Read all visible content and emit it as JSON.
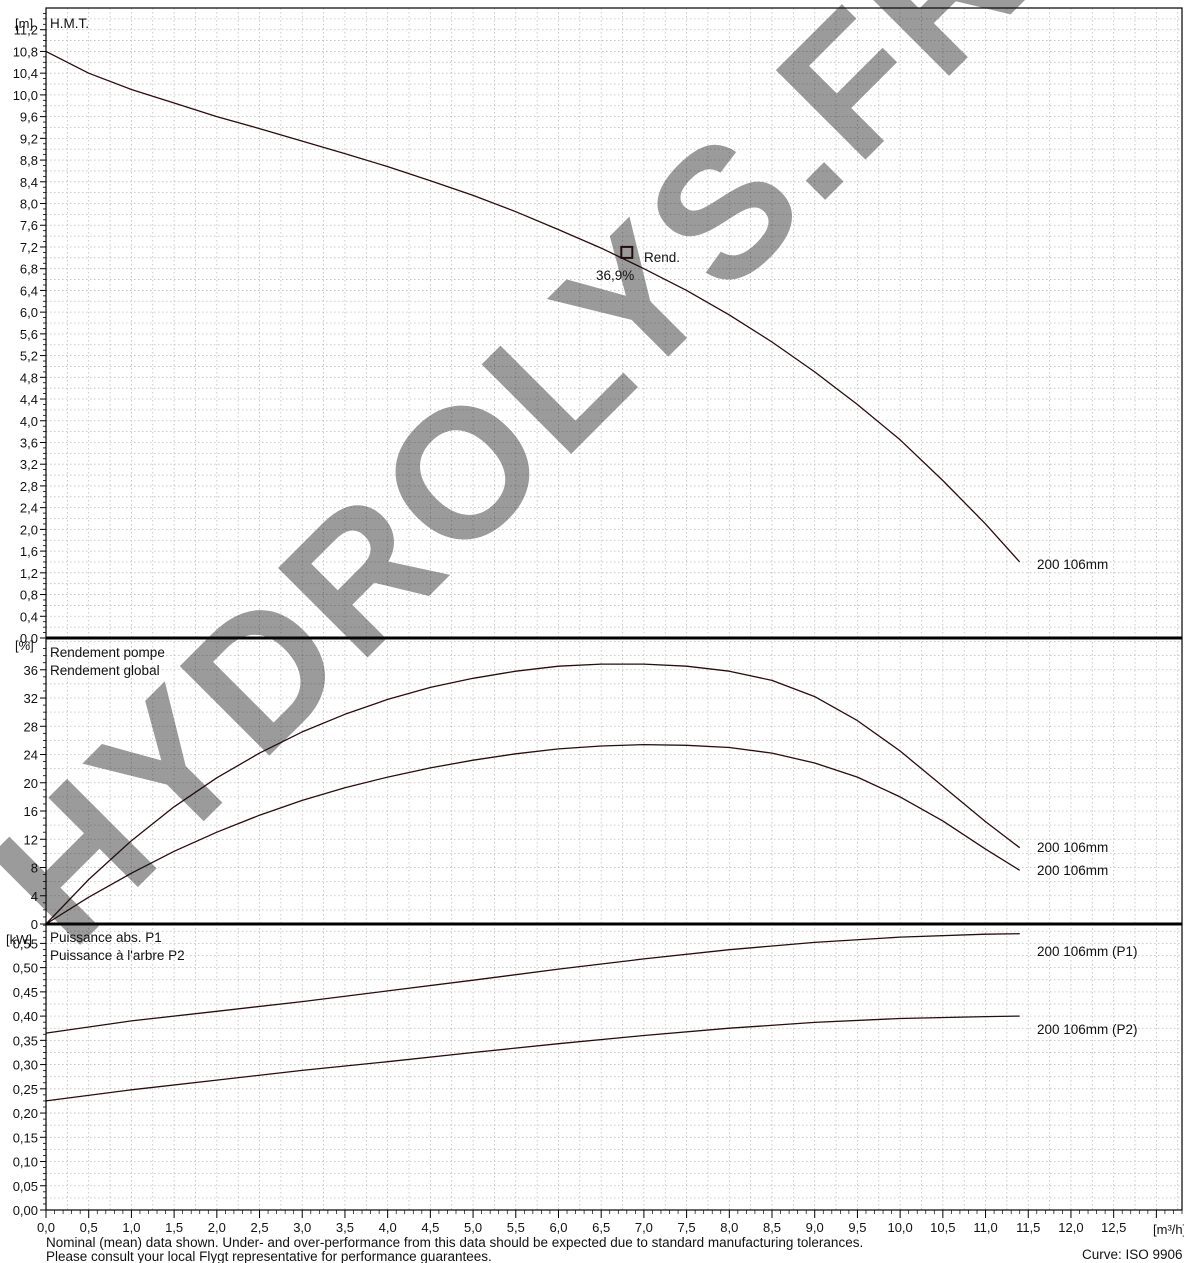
{
  "watermark": "HYDROLYS.FR",
  "colors": {
    "curve": "#2a0c0c",
    "grid": "#bdbdbd",
    "frame": "#000000",
    "watermark": "#5aaed3"
  },
  "x_axis": {
    "unit": "[m³/h]",
    "ticks": [
      "0,0",
      "0,5",
      "1,0",
      "1,5",
      "2,0",
      "2,5",
      "3,0",
      "3,5",
      "4,0",
      "4,5",
      "5,0",
      "5,5",
      "6,0",
      "6,5",
      "7,0",
      "7,5",
      "8,0",
      "8,5",
      "9,0",
      "9,5",
      "10,0",
      "10,5",
      "11,0",
      "11,5",
      "12,0",
      "12,5"
    ],
    "range": [
      0,
      13.3
    ]
  },
  "footer": {
    "line1": "Nominal (mean) data shown. Under- and over-performance from this data should be expected due to standard manufacturing tolerances.",
    "line2": "Please consult your local Flygt representative for performance guarantees.",
    "curve_ref": "Curve: ISO 9906"
  },
  "chart_data": [
    {
      "type": "line",
      "panel": "head",
      "unit": "[m]",
      "ylabel": "H.M.T.",
      "ylim": [
        0,
        11.6
      ],
      "yticks": [
        "0,0",
        "0,4",
        "0,8",
        "1,2",
        "1,6",
        "2,0",
        "2,4",
        "2,8",
        "3,2",
        "3,6",
        "4,0",
        "4,4",
        "4,8",
        "5,2",
        "5,6",
        "6,0",
        "6,4",
        "6,8",
        "7,2",
        "7,6",
        "8,0",
        "8,4",
        "8,8",
        "9,2",
        "9,6",
        "10,0",
        "10,4",
        "10,8",
        "11,2"
      ],
      "grid": true,
      "series": [
        {
          "name": "200 106mm",
          "x": [
            0,
            0.5,
            1,
            1.5,
            2,
            2.5,
            3,
            3.5,
            4,
            4.5,
            5,
            5.5,
            6,
            6.5,
            7,
            7.5,
            8,
            8.5,
            9,
            9.5,
            10,
            10.5,
            11,
            11.4
          ],
          "values": [
            10.8,
            10.4,
            10.1,
            9.85,
            9.6,
            9.38,
            9.15,
            8.92,
            8.68,
            8.42,
            8.15,
            7.85,
            7.52,
            7.18,
            6.8,
            6.4,
            5.95,
            5.45,
            4.9,
            4.3,
            3.65,
            2.9,
            2.1,
            1.4
          ]
        }
      ],
      "annotations": [
        {
          "label": "Rend.",
          "x": 6.8,
          "y": 7.1
        },
        {
          "label": "36,9%",
          "x": 6.8,
          "y": 7.1
        }
      ]
    },
    {
      "type": "line",
      "panel": "efficiency",
      "unit": "[%]",
      "ylim": [
        0,
        40.5
      ],
      "yticks": [
        "0",
        "4",
        "8",
        "12",
        "16",
        "20",
        "24",
        "28",
        "32",
        "36"
      ],
      "grid": true,
      "legend": [
        "Rendement pompe",
        "Rendement global"
      ],
      "series": [
        {
          "name": "200 106mm",
          "x": [
            0,
            0.5,
            1,
            1.5,
            2,
            2.5,
            3,
            3.5,
            4,
            4.5,
            5,
            5.5,
            6,
            6.5,
            7,
            7.5,
            8,
            8.5,
            9,
            9.5,
            10,
            10.5,
            11,
            11.4
          ],
          "values": [
            0,
            6.3,
            11.8,
            16.6,
            20.7,
            24.2,
            27.2,
            29.7,
            31.8,
            33.5,
            34.8,
            35.8,
            36.5,
            36.8,
            36.8,
            36.5,
            35.8,
            34.5,
            32.2,
            28.8,
            24.5,
            19.5,
            14.5,
            10.8
          ]
        },
        {
          "name": "200 106mm",
          "x": [
            0,
            0.5,
            1,
            1.5,
            2,
            2.5,
            3,
            3.5,
            4,
            4.5,
            5,
            5.5,
            6,
            6.5,
            7,
            7.5,
            8,
            8.5,
            9,
            9.5,
            10,
            10.5,
            11,
            11.4
          ],
          "values": [
            0,
            3.8,
            7.2,
            10.3,
            13.0,
            15.4,
            17.5,
            19.3,
            20.8,
            22.1,
            23.2,
            24.1,
            24.8,
            25.2,
            25.4,
            25.3,
            25.0,
            24.2,
            22.8,
            20.8,
            18.0,
            14.6,
            10.6,
            7.6
          ]
        }
      ]
    },
    {
      "type": "line",
      "panel": "power",
      "unit": "[kW]",
      "ylim": [
        0,
        0.59
      ],
      "yticks": [
        "0,00",
        "0,05",
        "0,10",
        "0,15",
        "0,20",
        "0,25",
        "0,30",
        "0,35",
        "0,40",
        "0,45",
        "0,50",
        "0,55"
      ],
      "grid": true,
      "legend": [
        "Puissance abs. P1",
        "Puissance à l'arbre P2"
      ],
      "series": [
        {
          "name": "200 106mm (P1)",
          "x": [
            0,
            1,
            2,
            3,
            4,
            5,
            6,
            7,
            8,
            9,
            10,
            11,
            11.4
          ],
          "values": [
            0.365,
            0.39,
            0.41,
            0.43,
            0.452,
            0.474,
            0.497,
            0.518,
            0.537,
            0.552,
            0.563,
            0.569,
            0.57
          ]
        },
        {
          "name": "200 106mm (P2)",
          "x": [
            0,
            1,
            2,
            3,
            4,
            5,
            6,
            7,
            8,
            9,
            10,
            11,
            11.4
          ],
          "values": [
            0.225,
            0.248,
            0.268,
            0.288,
            0.306,
            0.325,
            0.343,
            0.36,
            0.375,
            0.387,
            0.395,
            0.399,
            0.4
          ]
        }
      ]
    }
  ]
}
